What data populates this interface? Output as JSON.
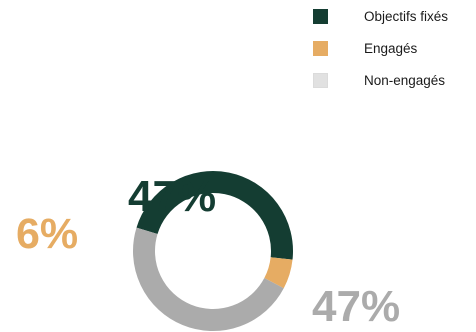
{
  "chart_data": {
    "type": "pie",
    "variant": "donut",
    "title": "",
    "legend_position": "top-right",
    "slices": [
      {
        "label": "Objectifs fixés",
        "value": 47,
        "display": "47%",
        "color": "#143d32"
      },
      {
        "label": "Engagés",
        "value": 6,
        "display": "6%",
        "color": "#e6ac63"
      },
      {
        "label": "Non-engagés",
        "value": 47,
        "display": "47%",
        "color": "#ababab"
      }
    ]
  }
}
